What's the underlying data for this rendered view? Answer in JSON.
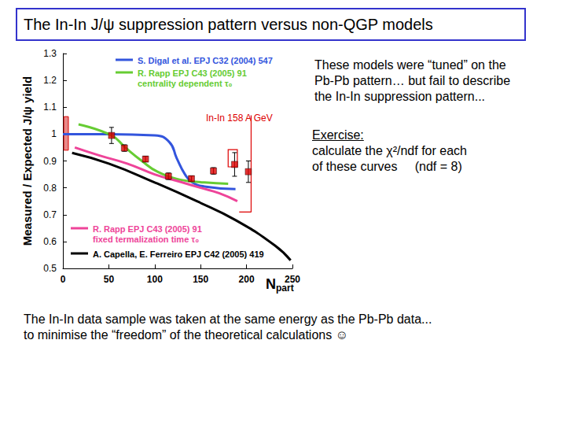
{
  "title": "The In-In J/ψ suppression pattern versus non-QGP models",
  "right_text": [
    "These models were “tuned” on the",
    "Pb-Pb pattern… but fail to describe",
    "the In-In suppression pattern..."
  ],
  "exercise": {
    "heading": "Exercise:",
    "lines": [
      "calculate the χ²/ndf for each",
      "of these curves     (ndf = 8)"
    ]
  },
  "bottom_text": [
    "The In-In data sample was taken at the same energy as the Pb-Pb data...",
    "to minimise the “freedom” of the theoretical calculations ☺"
  ],
  "chart_data": {
    "type": "line",
    "xlim": [
      0,
      250
    ],
    "xticks": [
      0,
      50,
      100,
      150,
      200,
      250
    ],
    "ylim": [
      0.5,
      1.3
    ],
    "yticks": [
      0.5,
      0.6,
      0.7,
      0.8,
      0.9,
      1,
      1.1,
      1.2,
      1.3
    ],
    "x_label": {
      "text": "N",
      "subscript": "part"
    },
    "y_label": "Measured / Expected J/ψ yield",
    "annotation": "In-In 158 A GeV",
    "series": [
      {
        "name": "S. Digal et al. EPJ C32 (2004) 547",
        "color": "#3355dd",
        "x": [
          0,
          50,
          100,
          116,
          124,
          133,
          141,
          154,
          188
        ],
        "values": [
          1.0,
          1.0,
          0.995,
          0.97,
          0.91,
          0.85,
          0.82,
          0.805,
          0.795
        ]
      },
      {
        "name": "R. Rapp EPJ C43 (2005) 91\ncentrality dependent τ₀",
        "color": "#66cc33",
        "x": [
          17,
          53,
          68,
          86,
          103,
          128,
          154,
          180
        ],
        "values": [
          1.036,
          0.995,
          0.95,
          0.9,
          0.86,
          0.83,
          0.82,
          0.815
        ]
      },
      {
        "name": "R. Rapp EPJ C43 (2005) 91\nfixed termalization time τ₀",
        "color": "#ee4499",
        "x": [
          13,
          40,
          70,
          100,
          130,
          150,
          170,
          190
        ],
        "values": [
          0.95,
          0.92,
          0.89,
          0.85,
          0.82,
          0.8,
          0.78,
          0.75
        ]
      },
      {
        "name": "A. Capella, E. Ferreiro EPJ C42 (2005) 419",
        "color": "#000000",
        "x": [
          10,
          50,
          100,
          146,
          188,
          231,
          248
        ],
        "values": [
          0.93,
          0.89,
          0.82,
          0.75,
          0.68,
          0.585,
          0.53
        ]
      }
    ],
    "data_points": {
      "color": "#dd0000",
      "marker": "square",
      "x": [
        53,
        67,
        90,
        115,
        140,
        164,
        187,
        202
      ],
      "values": [
        0.995,
        0.948,
        0.907,
        0.843,
        0.834,
        0.863,
        0.887,
        0.86
      ],
      "yerr": [
        0.03,
        0.012,
        0.01,
        0.012,
        0.01,
        0.012,
        0.044,
        0.04
      ]
    },
    "global_error": {
      "x_low": 1,
      "x_high": 6,
      "y_low": 0.94,
      "y_high": 1.065
    },
    "syst_box": {
      "x_low": 180,
      "x_high": 190,
      "y_low": 0.878,
      "y_high": 0.942
    },
    "bracket": {
      "x": [
        205,
        205,
        192
      ],
      "values": [
        1.07,
        0.71,
        0.71
      ]
    }
  }
}
